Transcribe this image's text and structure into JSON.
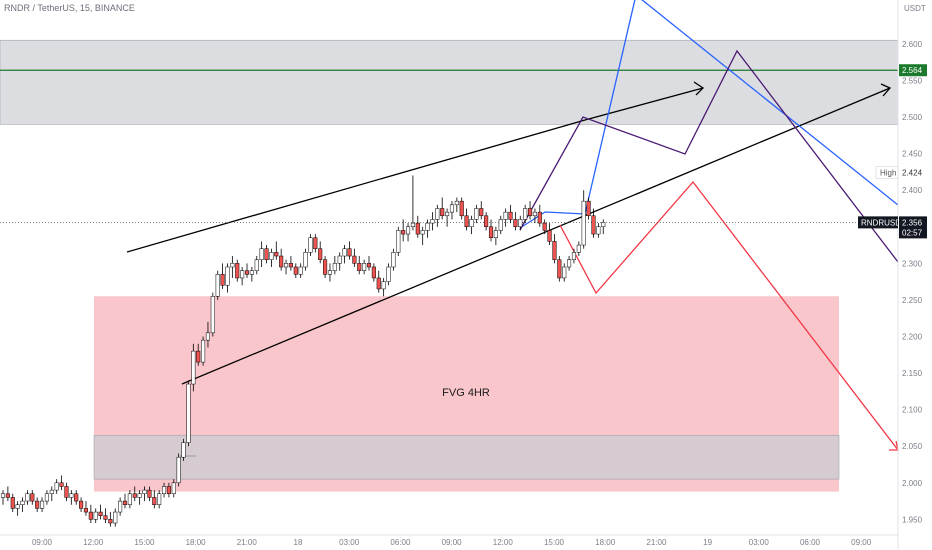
{
  "header": {
    "pair": "RNDR / TetherUS",
    "interval": "15",
    "exchange": "BINANCE"
  },
  "chart_data": {
    "type": "candlestick",
    "ylim": [
      1.93,
      2.66
    ],
    "y_ticks": [
      "1.950",
      "2.000",
      "2.050",
      "2.100",
      "2.150",
      "2.200",
      "2.250",
      "2.300",
      "2.350",
      "2.400",
      "2.450",
      "2.500",
      "2.550",
      "2.600"
    ],
    "y_tick_values": [
      1.95,
      2.0,
      2.05,
      2.1,
      2.15,
      2.2,
      2.25,
      2.3,
      2.35,
      2.4,
      2.45,
      2.5,
      2.55,
      2.6
    ],
    "currency_label": "USDT",
    "x_ticks": [
      "09:00",
      "12:00",
      "15:00",
      "18:00",
      "21:00",
      "18",
      "03:00",
      "06:00",
      "09:00",
      "12:00",
      "15:00",
      "18:00",
      "21:00",
      "19",
      "03:00",
      "06:00",
      "09:00"
    ],
    "grid": false,
    "candles": [
      [
        1.98,
        1.99,
        1.97,
        1.985
      ],
      [
        1.985,
        1.995,
        1.975,
        1.98
      ],
      [
        1.98,
        1.985,
        1.96,
        1.965
      ],
      [
        1.965,
        1.975,
        1.955,
        1.97
      ],
      [
        1.97,
        1.98,
        1.96,
        1.975
      ],
      [
        1.975,
        1.99,
        1.97,
        1.985
      ],
      [
        1.985,
        1.99,
        1.97,
        1.975
      ],
      [
        1.975,
        1.98,
        1.96,
        1.965
      ],
      [
        1.965,
        1.98,
        1.96,
        1.975
      ],
      [
        1.975,
        1.99,
        1.97,
        1.985
      ],
      [
        1.985,
        1.995,
        1.975,
        1.99
      ],
      [
        1.99,
        2.005,
        1.985,
        2.0
      ],
      [
        2.0,
        2.01,
        1.99,
        1.995
      ],
      [
        1.995,
        2.0,
        1.975,
        1.98
      ],
      [
        1.98,
        1.99,
        1.97,
        1.985
      ],
      [
        1.985,
        1.99,
        1.97,
        1.975
      ],
      [
        1.975,
        1.98,
        1.96,
        1.965
      ],
      [
        1.965,
        1.975,
        1.955,
        1.96
      ],
      [
        1.96,
        1.97,
        1.945,
        1.95
      ],
      [
        1.95,
        1.965,
        1.945,
        1.96
      ],
      [
        1.96,
        1.97,
        1.95,
        1.955
      ],
      [
        1.955,
        1.965,
        1.945,
        1.95
      ],
      [
        1.95,
        1.96,
        1.94,
        1.945
      ],
      [
        1.945,
        1.965,
        1.94,
        1.96
      ],
      [
        1.96,
        1.98,
        1.955,
        1.975
      ],
      [
        1.975,
        1.985,
        1.965,
        1.97
      ],
      [
        1.97,
        1.99,
        1.965,
        1.985
      ],
      [
        1.985,
        1.995,
        1.975,
        1.98
      ],
      [
        1.98,
        1.99,
        1.97,
        1.985
      ],
      [
        1.985,
        1.995,
        1.975,
        1.99
      ],
      [
        1.99,
        1.995,
        1.975,
        1.98
      ],
      [
        1.98,
        1.99,
        1.965,
        1.97
      ],
      [
        1.97,
        1.99,
        1.965,
        1.985
      ],
      [
        1.985,
        2.0,
        1.98,
        1.995
      ],
      [
        1.995,
        2.0,
        1.98,
        1.985
      ],
      [
        1.985,
        2.005,
        1.98,
        2.0
      ],
      [
        2.0,
        2.04,
        1.995,
        2.035
      ],
      [
        2.035,
        2.06,
        2.03,
        2.055
      ],
      [
        2.055,
        2.14,
        2.05,
        2.135
      ],
      [
        2.135,
        2.19,
        2.125,
        2.18
      ],
      [
        2.18,
        2.19,
        2.16,
        2.165
      ],
      [
        2.165,
        2.2,
        2.16,
        2.195
      ],
      [
        2.195,
        2.22,
        2.185,
        2.205
      ],
      [
        2.205,
        2.26,
        2.2,
        2.255
      ],
      [
        2.255,
        2.29,
        2.25,
        2.285
      ],
      [
        2.285,
        2.3,
        2.265,
        2.27
      ],
      [
        2.27,
        2.3,
        2.26,
        2.295
      ],
      [
        2.295,
        2.31,
        2.28,
        2.3
      ],
      [
        2.3,
        2.305,
        2.275,
        2.28
      ],
      [
        2.28,
        2.295,
        2.27,
        2.29
      ],
      [
        2.29,
        2.3,
        2.28,
        2.285
      ],
      [
        2.285,
        2.295,
        2.275,
        2.29
      ],
      [
        2.29,
        2.31,
        2.285,
        2.305
      ],
      [
        2.305,
        2.33,
        2.295,
        2.32
      ],
      [
        2.32,
        2.325,
        2.3,
        2.305
      ],
      [
        2.305,
        2.32,
        2.295,
        2.315
      ],
      [
        2.315,
        2.33,
        2.305,
        2.31
      ],
      [
        2.31,
        2.32,
        2.29,
        2.295
      ],
      [
        2.295,
        2.305,
        2.285,
        2.3
      ],
      [
        2.3,
        2.31,
        2.29,
        2.295
      ],
      [
        2.295,
        2.3,
        2.28,
        2.285
      ],
      [
        2.285,
        2.3,
        2.28,
        2.295
      ],
      [
        2.295,
        2.32,
        2.29,
        2.315
      ],
      [
        2.315,
        2.34,
        2.31,
        2.335
      ],
      [
        2.335,
        2.34,
        2.315,
        2.32
      ],
      [
        2.32,
        2.33,
        2.3,
        2.305
      ],
      [
        2.305,
        2.31,
        2.28,
        2.285
      ],
      [
        2.285,
        2.3,
        2.275,
        2.29
      ],
      [
        2.29,
        2.31,
        2.285,
        2.3
      ],
      [
        2.3,
        2.315,
        2.29,
        2.31
      ],
      [
        2.31,
        2.325,
        2.3,
        2.32
      ],
      [
        2.32,
        2.33,
        2.305,
        2.31
      ],
      [
        2.31,
        2.32,
        2.295,
        2.3
      ],
      [
        2.3,
        2.31,
        2.285,
        2.29
      ],
      [
        2.29,
        2.305,
        2.285,
        2.3
      ],
      [
        2.3,
        2.31,
        2.29,
        2.295
      ],
      [
        2.295,
        2.3,
        2.275,
        2.28
      ],
      [
        2.28,
        2.29,
        2.26,
        2.265
      ],
      [
        2.265,
        2.28,
        2.255,
        2.275
      ],
      [
        2.275,
        2.3,
        2.27,
        2.295
      ],
      [
        2.295,
        2.32,
        2.29,
        2.315
      ],
      [
        2.315,
        2.35,
        2.31,
        2.345
      ],
      [
        2.345,
        2.36,
        2.33,
        2.34
      ],
      [
        2.34,
        2.355,
        2.33,
        2.35
      ],
      [
        2.35,
        2.42,
        2.345,
        2.355
      ],
      [
        2.355,
        2.365,
        2.335,
        2.34
      ],
      [
        2.34,
        2.35,
        2.325,
        2.345
      ],
      [
        2.345,
        2.36,
        2.335,
        2.355
      ],
      [
        2.355,
        2.37,
        2.345,
        2.36
      ],
      [
        2.36,
        2.38,
        2.35,
        2.375
      ],
      [
        2.375,
        2.39,
        2.36,
        2.365
      ],
      [
        2.365,
        2.375,
        2.35,
        2.37
      ],
      [
        2.37,
        2.385,
        2.36,
        2.38
      ],
      [
        2.38,
        2.39,
        2.37,
        2.385
      ],
      [
        2.385,
        2.39,
        2.36,
        2.365
      ],
      [
        2.365,
        2.375,
        2.345,
        2.35
      ],
      [
        2.35,
        2.365,
        2.34,
        2.36
      ],
      [
        2.36,
        2.38,
        2.355,
        2.375
      ],
      [
        2.375,
        2.385,
        2.36,
        2.365
      ],
      [
        2.365,
        2.37,
        2.345,
        2.35
      ],
      [
        2.35,
        2.36,
        2.33,
        2.335
      ],
      [
        2.335,
        2.35,
        2.325,
        2.345
      ],
      [
        2.345,
        2.365,
        2.34,
        2.36
      ],
      [
        2.36,
        2.375,
        2.35,
        2.37
      ],
      [
        2.37,
        2.38,
        2.355,
        2.36
      ],
      [
        2.36,
        2.37,
        2.345,
        2.35
      ],
      [
        2.35,
        2.365,
        2.345,
        2.36
      ],
      [
        2.36,
        2.38,
        2.355,
        2.375
      ],
      [
        2.375,
        2.385,
        2.36,
        2.365
      ],
      [
        2.365,
        2.375,
        2.355,
        2.37
      ],
      [
        2.37,
        2.38,
        2.35,
        2.355
      ],
      [
        2.355,
        2.36,
        2.34,
        2.345
      ],
      [
        2.345,
        2.355,
        2.325,
        2.33
      ],
      [
        2.33,
        2.34,
        2.3,
        2.305
      ],
      [
        2.305,
        2.31,
        2.275,
        2.28
      ],
      [
        2.28,
        2.3,
        2.275,
        2.295
      ],
      [
        2.295,
        2.31,
        2.29,
        2.305
      ],
      [
        2.305,
        2.32,
        2.3,
        2.315
      ],
      [
        2.315,
        2.33,
        2.31,
        2.325
      ],
      [
        2.325,
        2.4,
        2.32,
        2.385
      ],
      [
        2.385,
        2.39,
        2.36,
        2.365
      ],
      [
        2.365,
        2.375,
        2.335,
        2.34
      ],
      [
        2.34,
        2.355,
        2.335,
        2.35
      ],
      [
        2.35,
        2.36,
        2.34,
        2.356
      ]
    ],
    "last_price": 2.356,
    "high_label": "High",
    "high_value": "2.424",
    "symbol_tag": "RNDRUSDT",
    "countdown": "02:57",
    "level_label": "2.564",
    "level_value": 2.564,
    "zones": [
      {
        "name": "resistance-zone",
        "from": 2.49,
        "to": 2.605,
        "color": "#d7d9de"
      },
      {
        "name": "fvg-zone",
        "from": 1.988,
        "to": 2.255,
        "color": "#f8bcc2"
      },
      {
        "name": "lower-grey-zone",
        "from": 2.005,
        "to": 2.065,
        "color": "#c9ccd3"
      }
    ],
    "fvg_label": "FVG 4HR",
    "colors": {
      "up": "#26a69a",
      "down": "#ef5350",
      "level": "#1b7a2b",
      "trend": "#000000",
      "projection_blue": "#2962ff",
      "projection_purple": "#4b1a73",
      "projection_red": "#f23645",
      "axis_text": "#7a7e87"
    }
  }
}
